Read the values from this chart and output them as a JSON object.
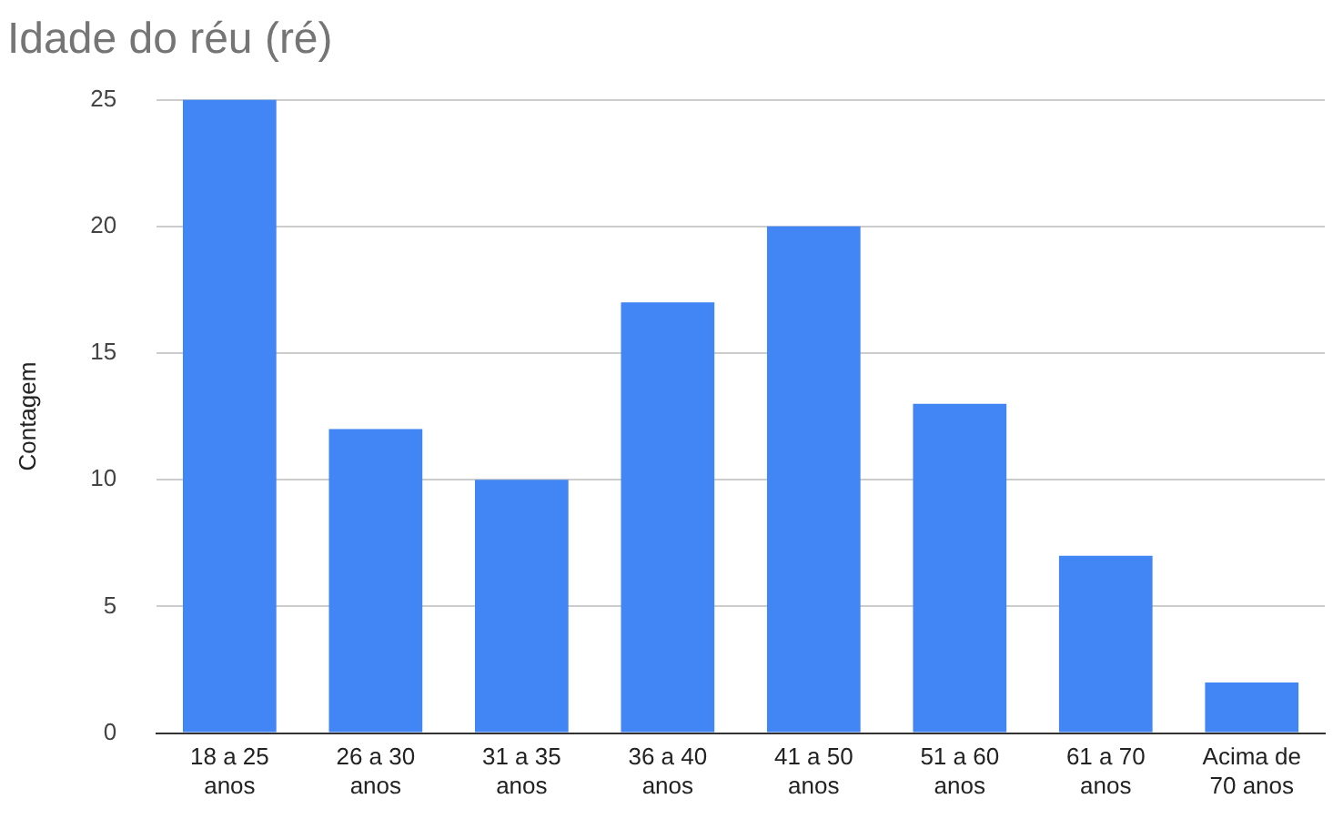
{
  "chart_data": {
    "type": "bar",
    "title": "Idade do réu (ré)",
    "ylabel": "Contagem",
    "categories": [
      "18 a 25 anos",
      "26 a 30 anos",
      "31 a 35 anos",
      "36 a 40 anos",
      "41 a 50 anos",
      "51 a 60 anos",
      "61 a 70 anos",
      "Acima de 70 anos"
    ],
    "values": [
      25,
      12,
      10,
      17,
      20,
      13,
      7,
      2
    ],
    "color": "#4285f4",
    "ylim": [
      0,
      25
    ],
    "yticks": [
      0,
      5,
      10,
      15,
      20,
      25
    ],
    "grid": "y",
    "legend": false
  }
}
